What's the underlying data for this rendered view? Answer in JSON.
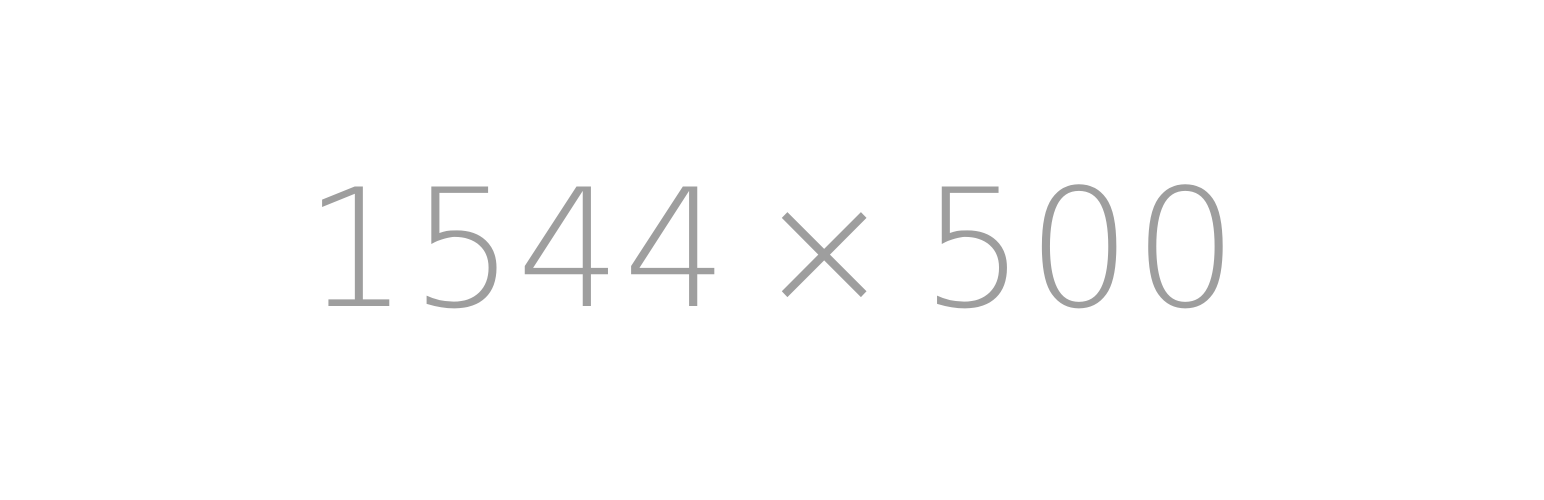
{
  "placeholder": {
    "width_text": "1544",
    "separator": "×",
    "height_text": "500",
    "text_color": "#9e9e9e",
    "background_color": "#ffffff"
  }
}
